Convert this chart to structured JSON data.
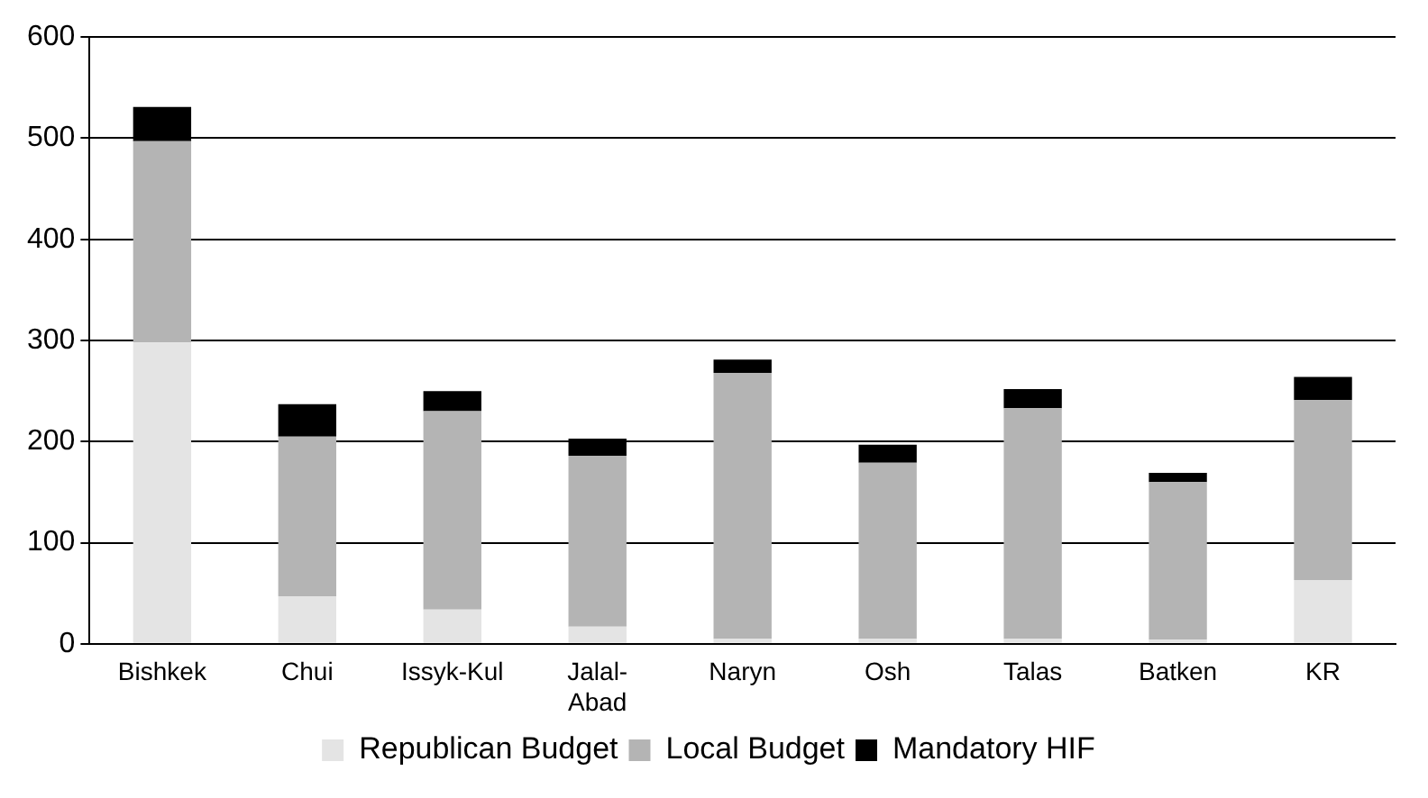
{
  "chart_data": {
    "type": "bar",
    "stacked": true,
    "categories": [
      "Bishkek",
      "Chui",
      "Issyk-Kul",
      "Jalal-Abad",
      "Naryn",
      "Osh",
      "Talas",
      "Batken",
      "KR"
    ],
    "series": [
      {
        "name": "Republican Budget",
        "color": "#e4e4e4",
        "values": [
          298,
          47,
          34,
          17,
          5,
          5,
          5,
          4,
          63
        ]
      },
      {
        "name": "Local Budget",
        "color": "#b4b4b4",
        "values": [
          199,
          158,
          196,
          169,
          263,
          174,
          228,
          156,
          178
        ]
      },
      {
        "name": "Mandatory HIF",
        "color": "#000000",
        "values": [
          34,
          32,
          20,
          17,
          13,
          18,
          19,
          9,
          23
        ]
      }
    ],
    "ylim": [
      0,
      600
    ],
    "yticks": [
      0,
      100,
      200,
      300,
      400,
      500,
      600
    ],
    "grid": "y",
    "legend": "bottom"
  }
}
